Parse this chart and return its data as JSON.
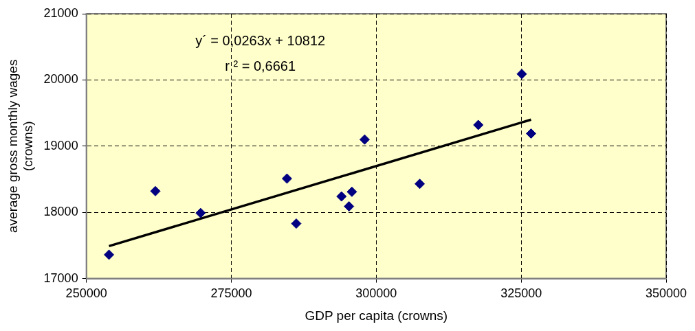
{
  "chart_data": {
    "type": "scatter",
    "xlabel": "GDP per capita (crowns)",
    "ylabel": "average gross monthly wages\n(crowns)",
    "xlim": [
      250000,
      350000
    ],
    "xticks": [
      250000,
      275000,
      300000,
      325000,
      350000
    ],
    "ylim": [
      17000,
      21000
    ],
    "yticks": [
      17000,
      18000,
      19000,
      20000,
      21000
    ],
    "grid": true,
    "legend": false,
    "series": [
      {
        "color": "#000080",
        "marker": "diamond",
        "x": [
          253900,
          261900,
          269700,
          284600,
          286200,
          294000,
          295300,
          295800,
          298000,
          307500,
          317600,
          325100,
          326700
        ],
        "values": [
          17360,
          18320,
          17990,
          18510,
          17830,
          18240,
          18090,
          18310,
          19100,
          18430,
          19320,
          20090,
          19190
        ]
      },
      {
        "type": "line",
        "color": "#000000",
        "marker": "none",
        "x": [
          253900,
          326700
        ],
        "values": [
          17490,
          19400
        ]
      }
    ],
    "annotations": [
      "y´ = 0,0263x + 10812",
      "r ² = 0,6661"
    ]
  }
}
